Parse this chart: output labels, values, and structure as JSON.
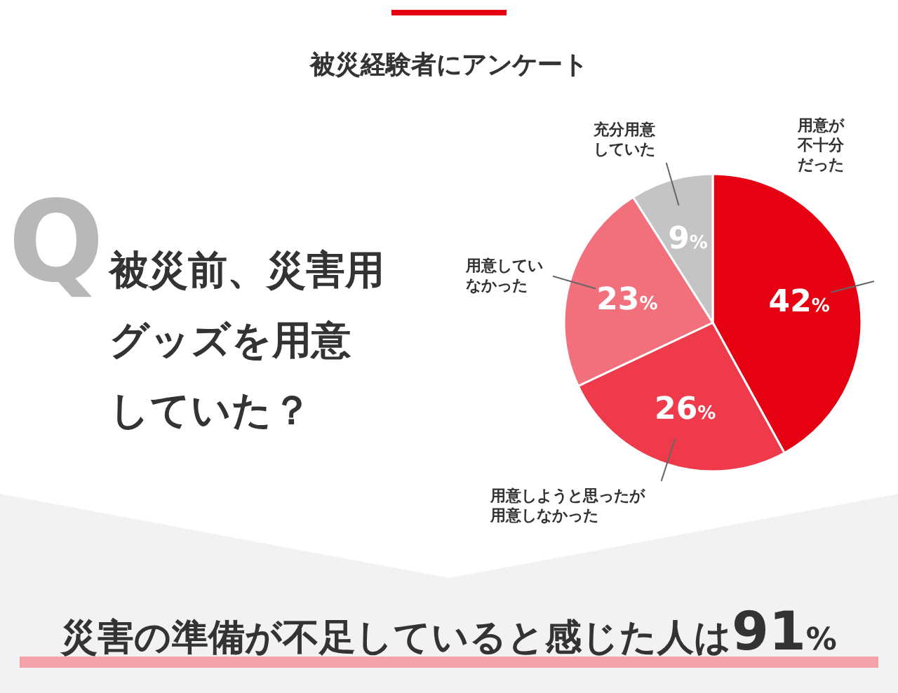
{
  "chart_data": {
    "type": "pie",
    "title": "被災経験者にアンケート",
    "subtitle": "被災前、災害用グッズを用意していた？",
    "categories": [
      "用意が不十分だった",
      "用意しようと思ったが用意しなかった",
      "用意していなかった",
      "充分用意していた"
    ],
    "values": [
      42,
      26,
      23,
      9
    ],
    "value_labels": [
      "42%",
      "26%",
      "23%",
      "9%"
    ],
    "colors": [
      "#e50012",
      "#ee3a4a",
      "#f2707c",
      "#c4c4c4"
    ],
    "annotations": [
      "Q",
      "災害の準備が不足していると感じた人は91%"
    ]
  }
}
